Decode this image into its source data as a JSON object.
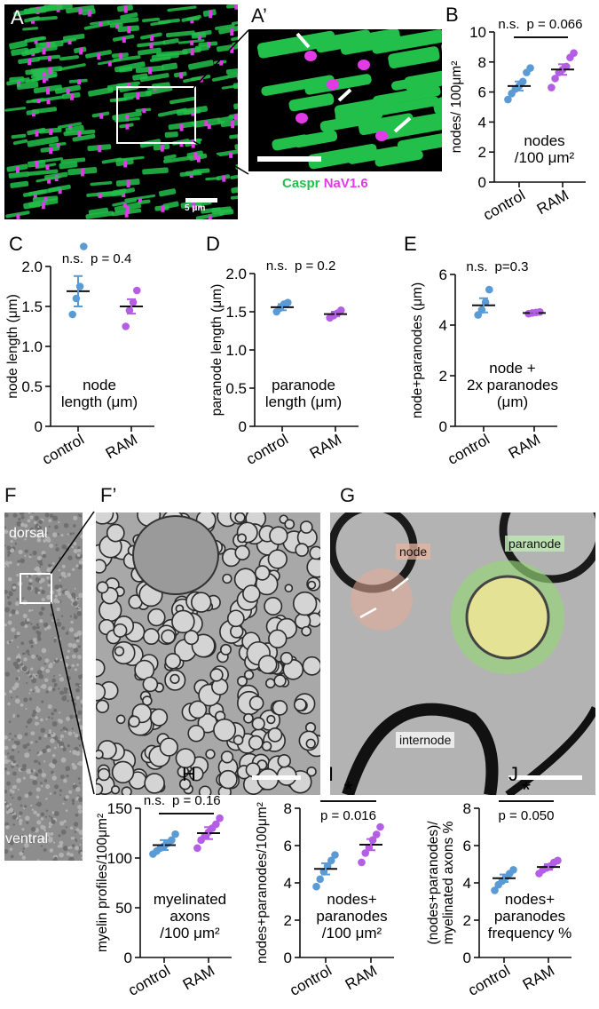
{
  "colors": {
    "control": "#5b9bd5",
    "ram": "#b45ee6",
    "caspr": "#22c04a",
    "nav": "#e33ae8"
  },
  "panels": {
    "A": {
      "letter": "A",
      "scale": "5 μm"
    },
    "A_prime": {
      "letter": "A’",
      "legend_caspr": "Caspr",
      "legend_nav": "NaV1.6"
    },
    "F": {
      "letter": "F",
      "top": "dorsal",
      "bottom": "ventral"
    },
    "F_prime": {
      "letter": "F’"
    },
    "G": {
      "letter": "G",
      "label_node": "node",
      "label_paranode": "paranode",
      "label_internode": "internode"
    }
  },
  "chart_data": [
    {
      "panel": "B",
      "type": "scatter",
      "categories": [
        "control",
        "RAM"
      ],
      "ylabel": "nodes/ 100μm²",
      "ylim": [
        0,
        10
      ],
      "yticks": [
        0,
        2,
        4,
        6,
        8,
        10
      ],
      "series": [
        {
          "values": [
            5.5,
            5.9,
            6.2,
            6.4,
            6.7,
            7.3,
            7.6
          ]
        },
        {
          "values": [
            6.3,
            6.9,
            7.3,
            7.5,
            7.7,
            8.3,
            8.6
          ]
        }
      ],
      "means": [
        6.4,
        7.5
      ],
      "sem": [
        0.3,
        0.35
      ],
      "stats": [
        "n.s.",
        "p = 0.066"
      ],
      "bracket": true,
      "annotation": [
        "nodes",
        "/100 μm²"
      ]
    },
    {
      "panel": "C",
      "type": "scatter",
      "categories": [
        "control",
        "RAM"
      ],
      "ylabel": "node length (μm)",
      "ylim": [
        0,
        2.0
      ],
      "yticks": [
        0,
        0.5,
        1.0,
        1.5,
        2.0
      ],
      "ytick_labels": [
        "0",
        "0.5",
        "1.0",
        "1.5",
        "2.0"
      ],
      "series": [
        {
          "values": [
            1.4,
            1.6,
            1.75,
            2.25
          ]
        },
        {
          "values": [
            1.25,
            1.45,
            1.55,
            1.7
          ]
        }
      ],
      "means": [
        1.69,
        1.5
      ],
      "sem": [
        0.19,
        0.09
      ],
      "stats": [
        "n.s.",
        "p = 0.4"
      ],
      "bracket": false,
      "annotation": [
        "node",
        "length (μm)"
      ]
    },
    {
      "panel": "D",
      "type": "scatter",
      "categories": [
        "control",
        "RAM"
      ],
      "ylabel": "paranode length (μm)",
      "ylim": [
        0,
        2.0
      ],
      "yticks": [
        0,
        0.5,
        1.0,
        1.5,
        2.0
      ],
      "ytick_labels": [
        "0",
        "0.5",
        "1.0",
        "1.5",
        "2.0"
      ],
      "series": [
        {
          "values": [
            1.5,
            1.55,
            1.6,
            1.62
          ]
        },
        {
          "values": [
            1.42,
            1.45,
            1.48,
            1.52
          ]
        }
      ],
      "means": [
        1.56,
        1.47
      ],
      "sem": [
        0.04,
        0.03
      ],
      "stats": [
        "n.s.",
        "p = 0.2"
      ],
      "bracket": false,
      "annotation": [
        "paranode",
        "length (μm)"
      ]
    },
    {
      "panel": "E",
      "type": "scatter",
      "categories": [
        "control",
        "RAM"
      ],
      "ylabel": "node+paranodes (μm)",
      "ylim": [
        0,
        6
      ],
      "yticks": [
        0,
        2,
        4,
        6
      ],
      "series": [
        {
          "values": [
            4.4,
            4.6,
            4.9,
            5.4
          ]
        },
        {
          "values": [
            4.45,
            4.48,
            4.5,
            4.52
          ]
        }
      ],
      "means": [
        4.78,
        4.48
      ],
      "sem": [
        0.28,
        0.04
      ],
      "stats": [
        "n.s.",
        "p=0.3"
      ],
      "bracket": false,
      "annotation": [
        "node +",
        "2x paranodes",
        "(μm)"
      ]
    },
    {
      "panel": "H",
      "type": "scatter",
      "categories": [
        "control",
        "RAM"
      ],
      "ylabel": "myelin profiles/100μm²",
      "ylim": [
        0,
        150
      ],
      "yticks": [
        0,
        50,
        100,
        150
      ],
      "series": [
        {
          "values": [
            104,
            107,
            110,
            112,
            115,
            118,
            124
          ]
        },
        {
          "values": [
            110,
            118,
            122,
            126,
            130,
            134,
            140
          ]
        }
      ],
      "means": [
        113,
        125
      ],
      "sem": [
        5,
        6
      ],
      "stats": [
        "n.s.",
        "p = 0.16"
      ],
      "bracket": true,
      "annotation": [
        "myelinated",
        "axons",
        "/100 μm²"
      ]
    },
    {
      "panel": "I",
      "type": "scatter",
      "categories": [
        "control",
        "RAM"
      ],
      "ylabel": "nodes+paranodes/100μm²",
      "ylim": [
        0,
        8
      ],
      "yticks": [
        0,
        2,
        4,
        6,
        8
      ],
      "series": [
        {
          "values": [
            3.8,
            4.2,
            4.6,
            4.9,
            5.2,
            5.5
          ]
        },
        {
          "values": [
            5.1,
            5.6,
            5.9,
            6.3,
            6.6,
            7.0
          ]
        }
      ],
      "means": [
        4.75,
        6.05
      ],
      "sem": [
        0.3,
        0.3
      ],
      "stats": [
        "*",
        "p = 0.016"
      ],
      "bracket": true,
      "annotation": [
        "nodes+",
        "paranodes",
        "/100 μm²"
      ]
    },
    {
      "panel": "J",
      "type": "scatter",
      "categories": [
        "control",
        "RAM"
      ],
      "ylabel": "(nodes+paranodes)/ myelinated axons %",
      "ylim": [
        0,
        8
      ],
      "yticks": [
        0,
        2,
        4,
        6,
        8
      ],
      "series": [
        {
          "values": [
            3.6,
            3.9,
            4.1,
            4.3,
            4.5,
            4.7
          ]
        },
        {
          "values": [
            4.5,
            4.7,
            4.8,
            4.9,
            5.1,
            5.2
          ]
        }
      ],
      "means": [
        4.25,
        4.85
      ],
      "sem": [
        0.2,
        0.15
      ],
      "stats": [
        "*",
        "p = 0.050"
      ],
      "bracket": true,
      "annotation": [
        "nodes+",
        "paranodes",
        "frequency %"
      ]
    }
  ]
}
